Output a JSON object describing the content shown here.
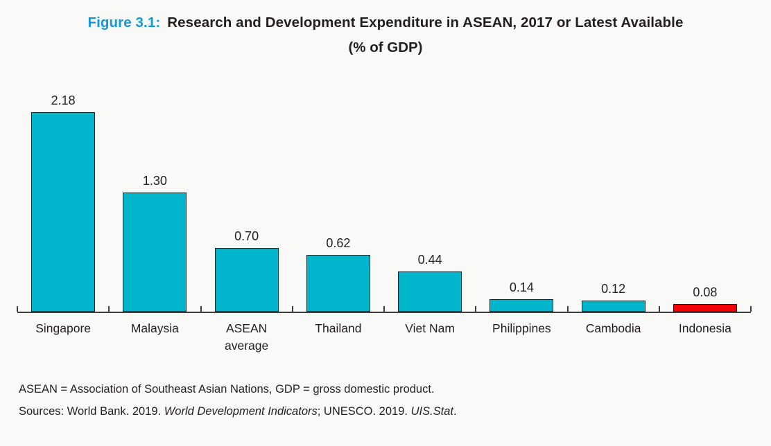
{
  "figure": {
    "label": "Figure 3.1:",
    "title": "Research and Development Expenditure in ASEAN, 2017 or Latest Available",
    "subtitle": "(% of GDP)"
  },
  "chart_data": {
    "type": "bar",
    "title": "Research and Development Expenditure in ASEAN, 2017 or Latest Available (% of GDP)",
    "categories": [
      "Singapore",
      "Malaysia",
      "ASEAN average",
      "Thailand",
      "Viet Nam",
      "Philippines",
      "Cambodia",
      "Indonesia"
    ],
    "values": [
      2.18,
      1.3,
      0.7,
      0.62,
      0.44,
      0.14,
      0.12,
      0.08
    ],
    "bar_colors": [
      "#00b5cc",
      "#00b5cc",
      "#00b5cc",
      "#00b5cc",
      "#00b5cc",
      "#00b5cc",
      "#00b5cc",
      "#f30008"
    ],
    "xlabel": "",
    "ylabel": "",
    "ylim": [
      0,
      2.3
    ],
    "grid": false,
    "legend": "none",
    "data_labels": "above-bars",
    "highlight_category": "Indonesia",
    "colors": {
      "default_bar": "#00b5cc",
      "highlight_bar": "#f30008",
      "axis": "#3f3f3f"
    }
  },
  "footnotes": {
    "line1": "ASEAN = Association of Southeast Asian Nations, GDP = gross domestic product.",
    "line2_segments": [
      {
        "text": "Sources: World Bank. 2019. ",
        "italic": false
      },
      {
        "text": "World Development Indicators",
        "italic": true
      },
      {
        "text": "; UNESCO. 2019. ",
        "italic": false
      },
      {
        "text": "UIS.Stat",
        "italic": true
      },
      {
        "text": ".",
        "italic": false
      }
    ]
  },
  "theme": {
    "background": "#f9f9f8",
    "figure_label_color": "#1598d6",
    "text_color": "#231f20"
  }
}
